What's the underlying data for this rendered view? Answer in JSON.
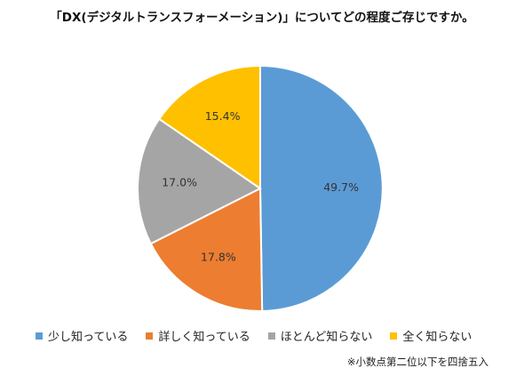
{
  "chart_data": {
    "type": "pie",
    "title": "「DX(デジタルトランスフォーメーション)」についてどの程度ご存じですか。",
    "slices": [
      {
        "label": "少し知っている",
        "value": 49.7,
        "value_label": "49.7%",
        "color": "#5B9BD5"
      },
      {
        "label": "詳しく知っている",
        "value": 17.8,
        "value_label": "17.8%",
        "color": "#ED7D31"
      },
      {
        "label": "ほとんど知らない",
        "value": 17.0,
        "value_label": "17.0%",
        "color": "#A5A5A5"
      },
      {
        "label": "全く知らない",
        "value": 15.4,
        "value_label": "15.4%",
        "color": "#FFC000"
      }
    ],
    "start": "top, clockwise",
    "legend_placement": "bottom",
    "footnote": "※小数点第二位以下を四捨五入"
  }
}
